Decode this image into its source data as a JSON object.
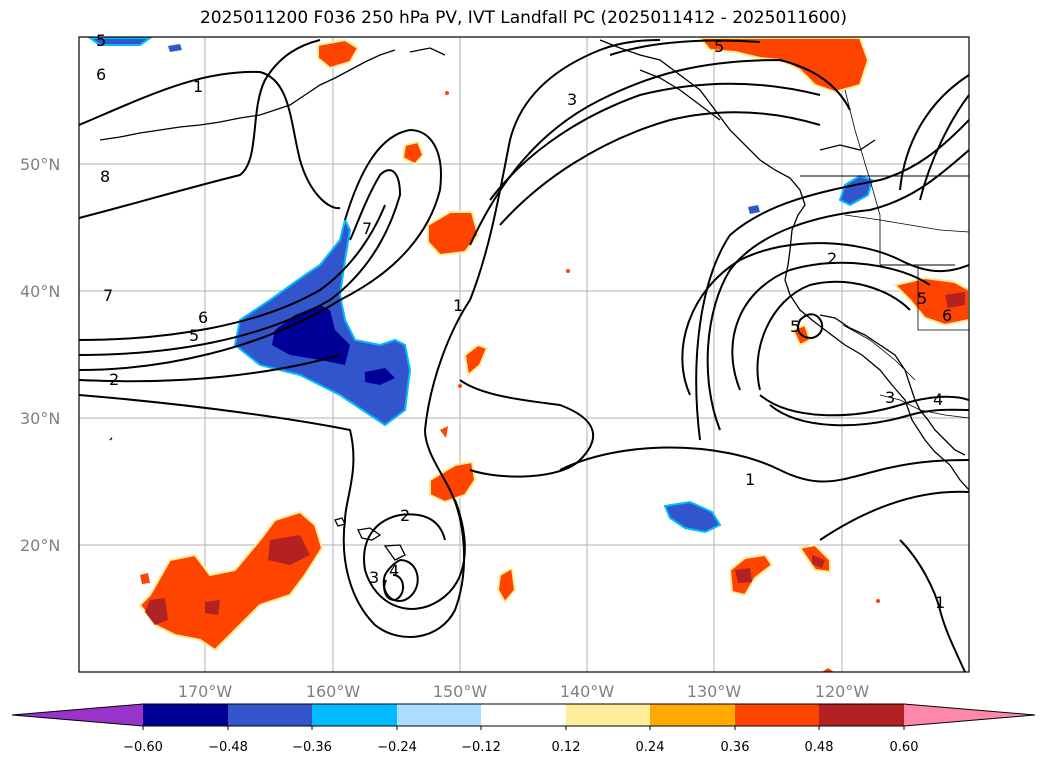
{
  "title": "2025011200 F036 250 hPa PV, IVT Landfall PC (2025011412 - 2025011600)",
  "lat_labels": [
    "50°N",
    "40°N",
    "30°N",
    "20°N"
  ],
  "lon_labels": [
    "170°W",
    "160°W",
    "150°W",
    "140°W",
    "130°W",
    "120°W"
  ],
  "colorbar": {
    "tick_labels": [
      "−0.60",
      "−0.48",
      "−0.36",
      "−0.24",
      "−0.12",
      "0.12",
      "0.24",
      "0.36",
      "0.48",
      "0.60"
    ],
    "colors": [
      "#9933cc",
      "#000099",
      "#3355cc",
      "#00bbff",
      "#aaddff",
      "#ffffff",
      "#ffee99",
      "#ffaa00",
      "#ff4400",
      "#b22222",
      "#ff88aa"
    ]
  },
  "contour_labels": [
    "5",
    "6",
    "1",
    "3",
    "5",
    "8",
    "7",
    "7",
    "6",
    "5",
    "2",
    "1",
    "2",
    "3",
    "4",
    "1",
    "2",
    "5",
    "5",
    "6",
    "3",
    "4",
    "1"
  ]
}
